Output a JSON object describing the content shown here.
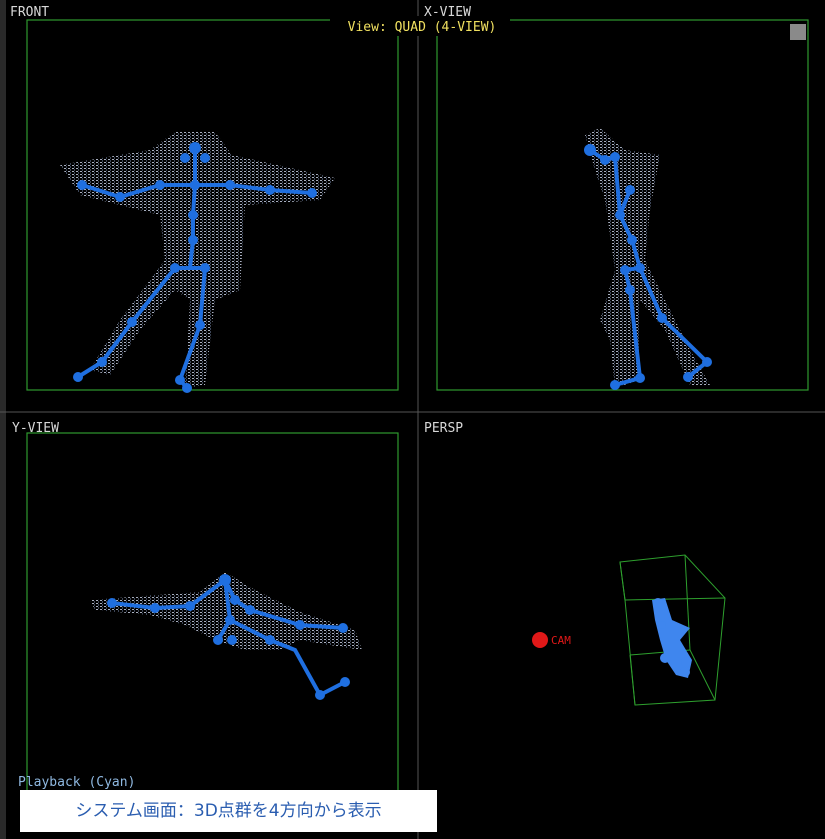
{
  "header": {
    "title": "View: QUAD (4-VIEW)"
  },
  "views": [
    {
      "label": "FRONT"
    },
    {
      "label": "X-VIEW"
    },
    {
      "label": "Y-VIEW",
      "status": "Playback (Cyan)"
    },
    {
      "label": "PERSP",
      "camera": "CAM"
    }
  ],
  "caption": "システム画面：3D点群を4方向から表示"
}
